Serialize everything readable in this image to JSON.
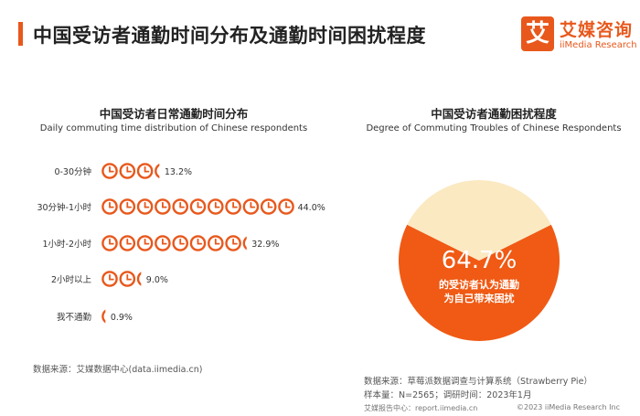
{
  "header": {
    "title": "中国受访者通勤时间分布及通勤时间困扰程度",
    "logo_icon": "艾",
    "logo_cn": "艾媒咨询",
    "logo_en": "iiMedia Research"
  },
  "colors": {
    "accent": "#e8581c",
    "pie_light": "#fbe9c2",
    "pie_dark": "#f05a14"
  },
  "chart_data": [
    {
      "type": "bar",
      "title": "中国受访者日常通勤时间分布",
      "subtitle": "Daily commuting time distribution of Chinese respondents",
      "icon": "clock-icon",
      "categories": [
        "0-30分钟",
        "30分钟-1小时",
        "1小时-2小时",
        "2小时以上",
        "我不通勤"
      ],
      "values": [
        13.2,
        44.0,
        32.9,
        9.0,
        0.9
      ],
      "value_labels": [
        "13.2%",
        "44.0%",
        "32.9%",
        "9.0%",
        "0.9%"
      ],
      "unit_per_icon": 4
    },
    {
      "type": "pie",
      "title": "中国受访者通勤困扰程度",
      "subtitle": "Degree of Commuting Troubles of Chinese Respondents",
      "slices": [
        {
          "label": "的受访者认为通勤为自己带来困扰",
          "value": 64.7
        },
        {
          "label": "",
          "value": 35.3
        }
      ],
      "center_value": "64.7%",
      "center_text_line1": "的受访者认为通勤",
      "center_text_line2": "为自己带来困扰"
    }
  ],
  "sources": {
    "left": "数据来源：艾媒数据中心(data.iimedia.cn)",
    "right_line1": "数据来源：草莓派数据调查与计算系统（Strawberry Pie）",
    "right_line2": "样本量：N=2565；调研时间：2023年1月"
  },
  "footer": {
    "left": "艾媒报告中心：report.iimedia.cn",
    "right": "©2023  iiMedia Research  Inc"
  }
}
